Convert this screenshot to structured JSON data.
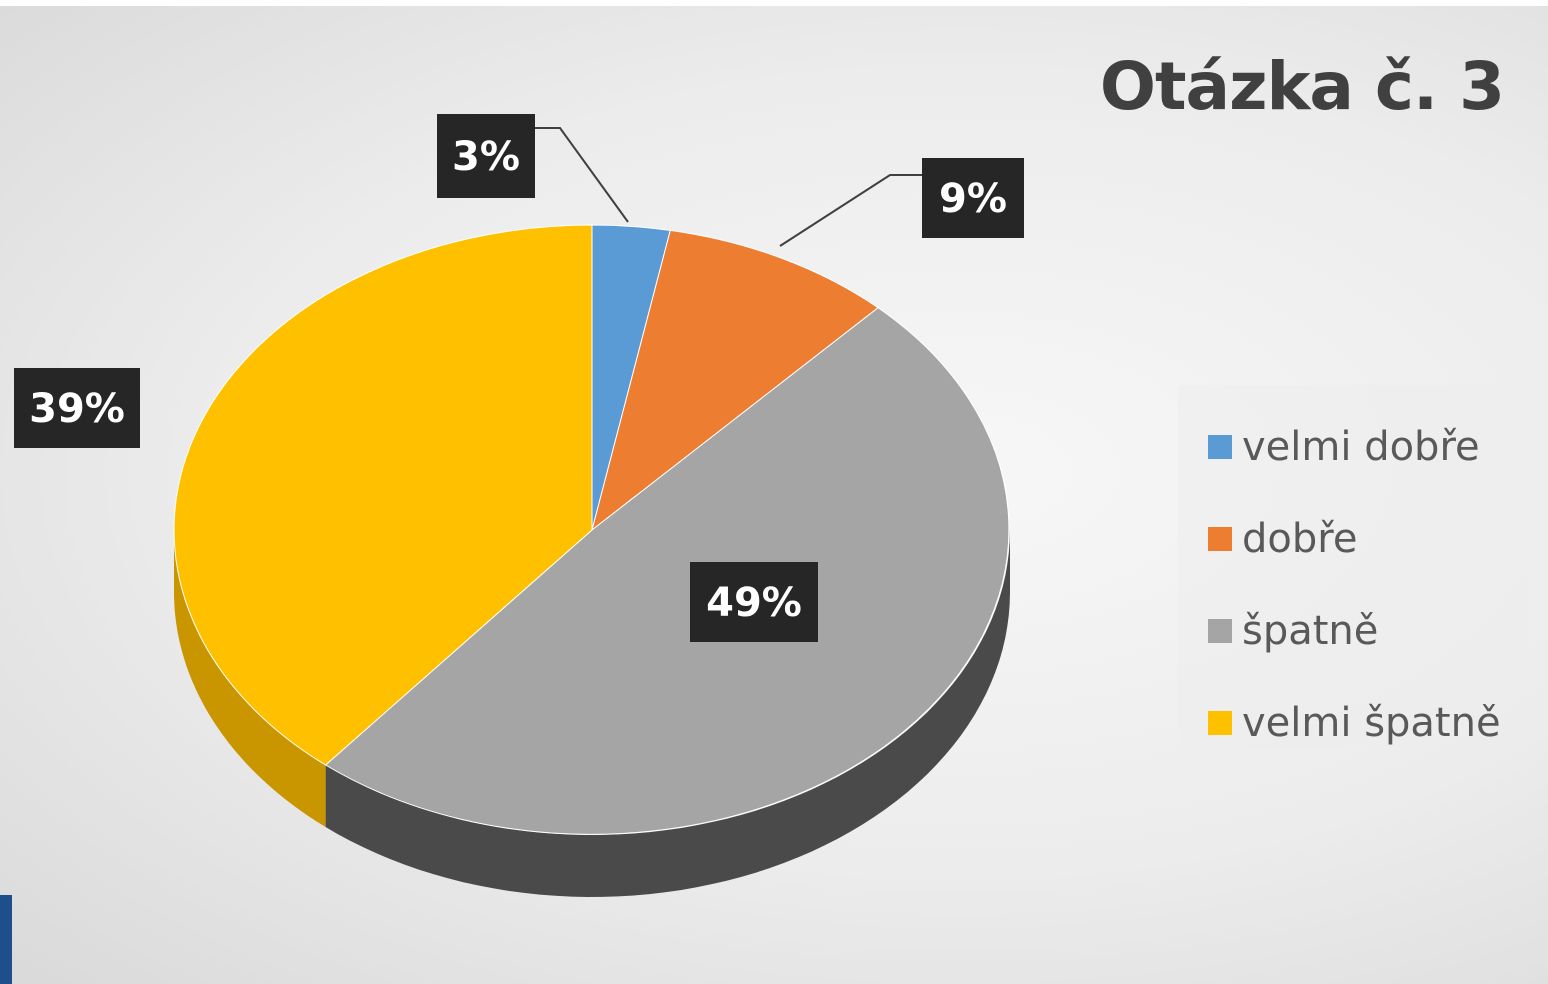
{
  "chart_data": {
    "type": "pie",
    "title": "Otázka č. 3",
    "categories": [
      "velmi dobře",
      "dobře",
      "špatně",
      "velmi špatně"
    ],
    "values": [
      3,
      9,
      49,
      39
    ],
    "unit": "%",
    "data_labels": [
      "3%",
      "9%",
      "49%",
      "39%"
    ],
    "colors": [
      "#5b9bd5",
      "#ed7d31",
      "#a5a5a5",
      "#ffc000"
    ],
    "side_colors": [
      "#3a6d9c",
      "#b35a1f",
      "#4a4a4a",
      "#c99600"
    ],
    "legend_placement": "right",
    "style": "3d-pie"
  }
}
